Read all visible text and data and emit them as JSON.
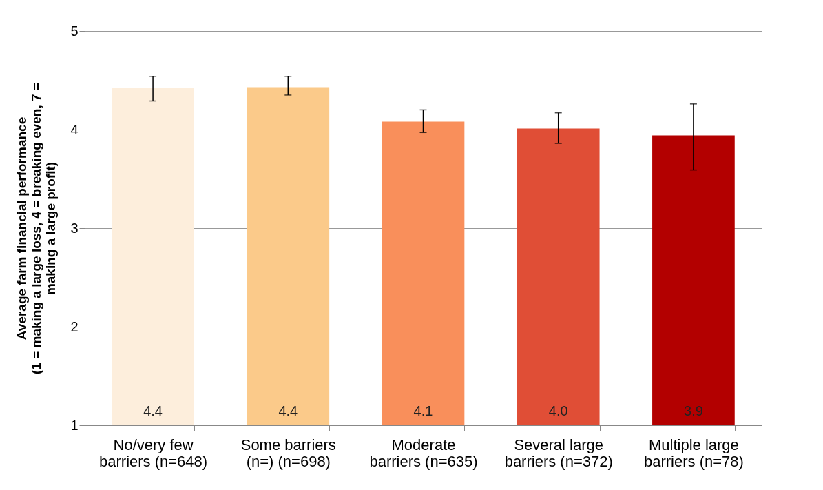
{
  "chart_data": {
    "type": "bar",
    "ylabel": "Average farm financial performance (1 = making a large loss, 4 = breaking even, 7 = making a large profit)",
    "categories": [
      "No/very few barriers (n=648)",
      "Some barriers (n=) (n=698)",
      "Moderate barriers (n=635)",
      "Several large barriers (n=372)",
      "Multiple large barriers (n=78)"
    ],
    "values": [
      4.42,
      4.43,
      4.08,
      4.01,
      3.94
    ],
    "value_labels": [
      "4.4",
      "4.4",
      "4.1",
      "4.0",
      "3.9"
    ],
    "errors": [
      [
        4.29,
        4.54
      ],
      [
        4.35,
        4.54
      ],
      [
        3.97,
        4.2
      ],
      [
        3.86,
        4.17
      ],
      [
        3.59,
        4.26
      ]
    ],
    "colors": [
      "#fdeedc",
      "#fbca8a",
      "#f98f5b",
      "#e04e36",
      "#b30000"
    ],
    "ylim": [
      1,
      5
    ],
    "yticks": [
      1,
      2,
      3,
      4,
      5
    ],
    "grid": "y",
    "legend": false
  }
}
